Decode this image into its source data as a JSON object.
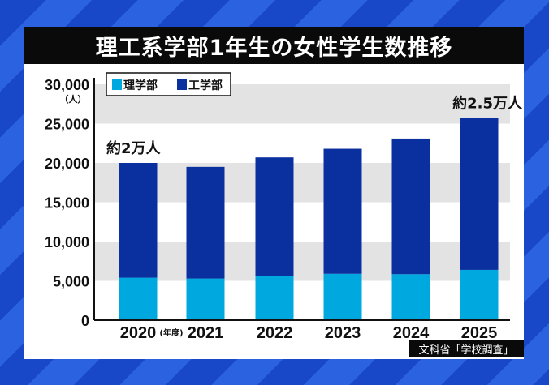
{
  "title": "理工系学部1年生の女性学生数推移",
  "source": "文科省「学校調査」",
  "chart_data": {
    "type": "bar",
    "stacked": true,
    "title": "理工系学部1年生の女性学生数推移",
    "ylabel": "（人）",
    "xlabel_unit": "(年度)",
    "categories": [
      "2020",
      "2021",
      "2022",
      "2023",
      "2024",
      "2025"
    ],
    "series": [
      {
        "name": "理学部",
        "color": "#00a8e0",
        "values": [
          5400,
          5300,
          5650,
          5900,
          5850,
          6400
        ]
      },
      {
        "name": "工学部",
        "color": "#0a2f9e",
        "values": [
          14600,
          14200,
          15050,
          15900,
          17250,
          19300
        ]
      }
    ],
    "ylim": [
      0,
      30000
    ],
    "yticks": [
      "0",
      "5,000",
      "10,000",
      "15,000",
      "20,000",
      "25,000",
      "30,000"
    ],
    "grid": "alternating horizontal bands",
    "legend": "top-left",
    "annotations": [
      {
        "category": "2020",
        "text": "約2万人"
      },
      {
        "category": "2025",
        "text": "約2.5万人"
      }
    ]
  }
}
